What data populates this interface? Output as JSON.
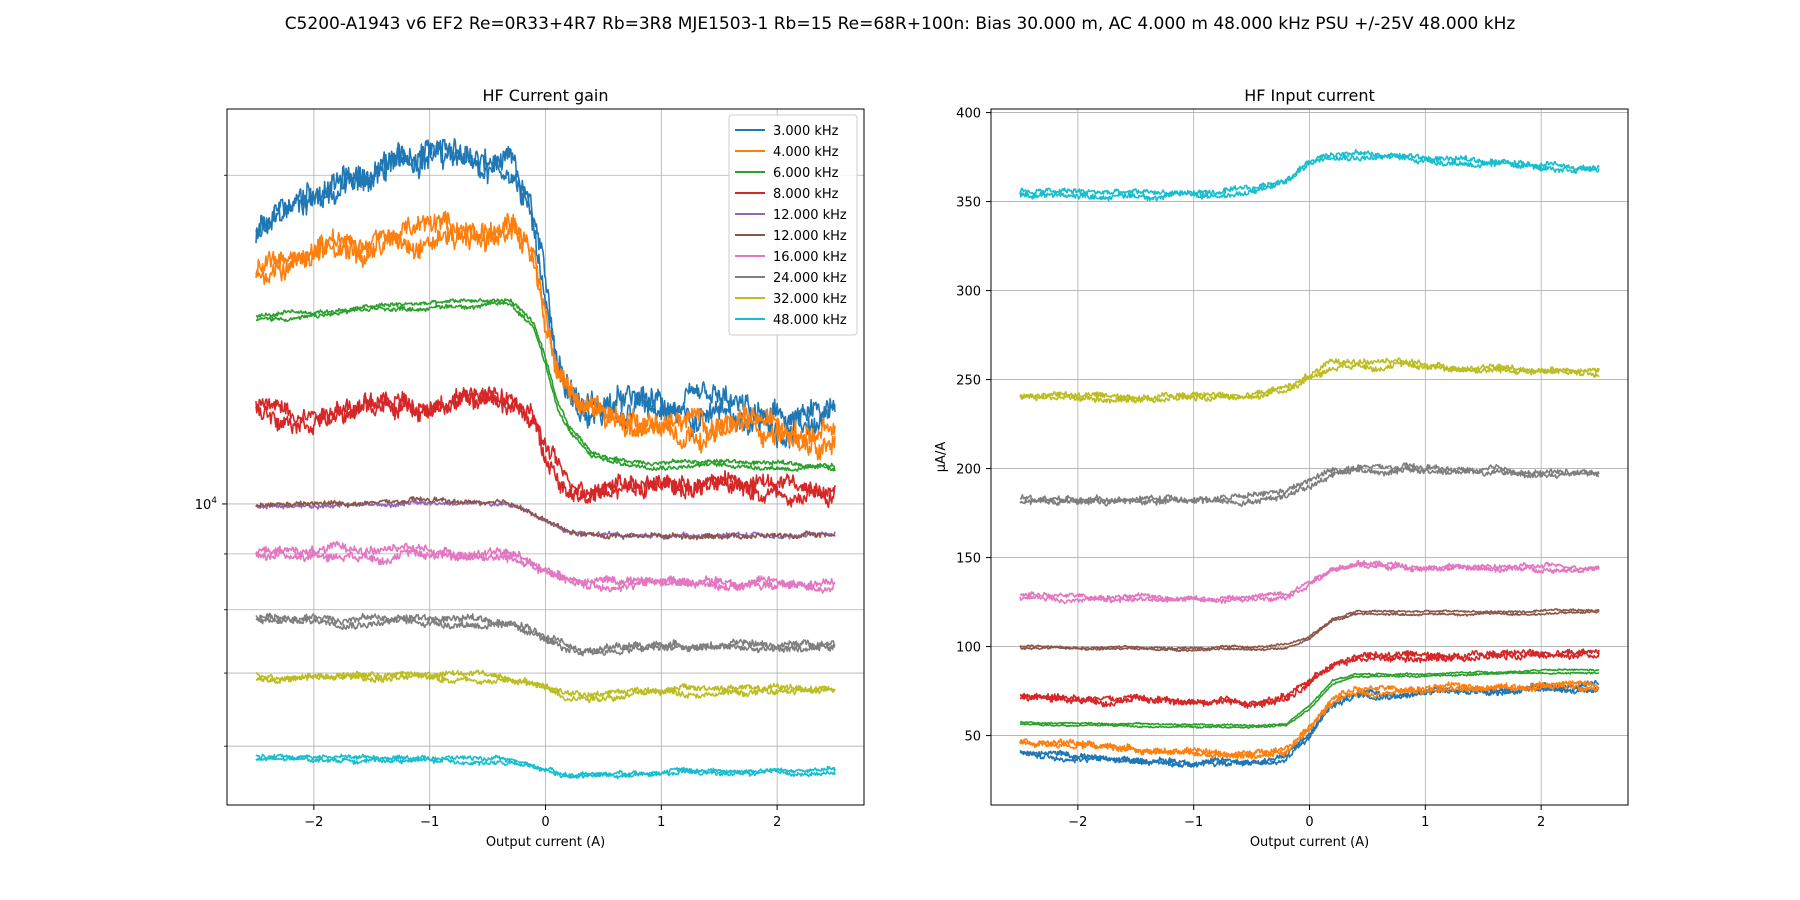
{
  "figure": {
    "suptitle": "C5200-A1943 v6 EF2 Re=0R33+4R7 Rb=3R8 MJE1503-1 Rb=15 Re=68R+100n: Bias 30.000 m, AC 4.000 m 48.000 kHz PSU +/-25V 48.000 kHz"
  },
  "chart_data": [
    {
      "type": "line",
      "title": "HF Current gain",
      "xlabel": "Output current (A)",
      "ylabel": "",
      "yscale": "log",
      "xlim": [
        -2.75,
        2.75
      ],
      "ylim": [
        5300,
        23000
      ],
      "xticks": [
        -2,
        -1,
        0,
        1,
        2
      ],
      "xtick_labels": [
        "−2",
        "−1",
        "0",
        "1",
        "2"
      ],
      "yticks_major": [
        10000
      ],
      "ytick_labels_major": [
        "10^4"
      ],
      "yticks_minor": [
        6000,
        7000,
        8000,
        9000,
        20000
      ],
      "grid": true,
      "legend": {
        "position": "upper right",
        "entries": [
          "3.000 kHz",
          "4.000 kHz",
          "6.000 kHz",
          "8.000 kHz",
          "12.000 kHz",
          "12.000 kHz",
          "16.000 kHz",
          "24.000 kHz",
          "32.000 kHz",
          "48.000 kHz"
        ]
      },
      "series": [
        {
          "name": "3.000 kHz",
          "color": "#1f77b4",
          "noise": 0.035,
          "x": [
            -2.5,
            -2.0,
            -1.5,
            -1.0,
            -0.5,
            -0.3,
            -0.1,
            0.0,
            0.1,
            0.3,
            0.6,
            1.0,
            1.5,
            2.0,
            2.5
          ],
          "y": [
            17500,
            19300,
            20000,
            21200,
            20500,
            20300,
            18000,
            15500,
            13500,
            12400,
            12300,
            12200,
            12100,
            11800,
            11900
          ]
        },
        {
          "name": "4.000 kHz",
          "color": "#ff7f0e",
          "noise": 0.03,
          "x": [
            -2.5,
            -2.0,
            -1.5,
            -1.0,
            -0.5,
            -0.25,
            -0.1,
            0.0,
            0.1,
            0.3,
            0.6,
            1.0,
            1.5,
            2.0,
            2.5
          ],
          "y": [
            16300,
            17200,
            17500,
            17800,
            17800,
            17900,
            16500,
            14800,
            13200,
            12200,
            12000,
            11900,
            11800,
            11700,
            11600
          ]
        },
        {
          "name": "6.000 kHz",
          "color": "#2ca02c",
          "noise": 0.006,
          "x": [
            -2.5,
            -2.0,
            -1.5,
            -1.0,
            -0.5,
            -0.3,
            -0.1,
            0.0,
            0.1,
            0.2,
            0.4,
            0.7,
            1.0,
            1.5,
            2.0,
            2.5
          ],
          "y": [
            14800,
            14900,
            15100,
            15200,
            15300,
            15300,
            14600,
            13500,
            12300,
            11700,
            11100,
            10900,
            10900,
            10900,
            10850,
            10800
          ]
        },
        {
          "name": "8.000 kHz",
          "color": "#d62728",
          "noise": 0.025,
          "x": [
            -2.5,
            -2.0,
            -1.5,
            -1.0,
            -0.5,
            -0.3,
            -0.1,
            0.0,
            0.1,
            0.2,
            0.4,
            0.7,
            1.0,
            1.5,
            2.0,
            2.5
          ],
          "y": [
            12200,
            12200,
            12300,
            12400,
            12500,
            12400,
            11800,
            11200,
            10700,
            10400,
            10400,
            10400,
            10400,
            10400,
            10350,
            10300
          ]
        },
        {
          "name": "12.000 kHz",
          "color": "#9467bd",
          "noise": 0.006,
          "x": [
            -2.5,
            -1.5,
            -0.5,
            -0.2,
            0.0,
            0.2,
            0.4,
            1.0,
            2.0,
            2.5
          ],
          "y": [
            10000,
            10050,
            10050,
            9950,
            9700,
            9450,
            9400,
            9400,
            9400,
            9400
          ]
        },
        {
          "name": "12.000 kHz",
          "color": "#8c564b",
          "noise": 0.007,
          "x": [
            -2.5,
            -1.5,
            -1.0,
            -0.5,
            -0.2,
            0.0,
            0.2,
            0.4,
            1.0,
            2.0,
            2.5
          ],
          "y": [
            10000,
            10050,
            10100,
            10050,
            9950,
            9700,
            9450,
            9400,
            9400,
            9400,
            9400
          ]
        },
        {
          "name": "16.000 kHz",
          "color": "#e377c2",
          "noise": 0.012,
          "x": [
            -2.5,
            -1.5,
            -0.5,
            -0.2,
            0.0,
            0.2,
            0.4,
            1.0,
            2.0,
            2.5
          ],
          "y": [
            9000,
            9050,
            9000,
            8900,
            8700,
            8500,
            8450,
            8500,
            8450,
            8450
          ]
        },
        {
          "name": "24.000 kHz",
          "color": "#7f7f7f",
          "noise": 0.01,
          "x": [
            -2.5,
            -1.5,
            -0.5,
            -0.2,
            0.0,
            0.2,
            0.4,
            1.0,
            2.0,
            2.5
          ],
          "y": [
            7850,
            7850,
            7800,
            7700,
            7550,
            7400,
            7350,
            7400,
            7400,
            7400
          ]
        },
        {
          "name": "32.000 kHz",
          "color": "#bcbd22",
          "noise": 0.009,
          "x": [
            -2.5,
            -1.5,
            -0.5,
            -0.2,
            0.0,
            0.2,
            0.4,
            1.0,
            2.0,
            2.5
          ],
          "y": [
            6950,
            6950,
            6950,
            6900,
            6800,
            6700,
            6700,
            6750,
            6750,
            6750
          ]
        },
        {
          "name": "48.000 kHz",
          "color": "#17becf",
          "noise": 0.006,
          "x": [
            -2.5,
            -1.5,
            -0.5,
            -0.2,
            0.0,
            0.2,
            0.4,
            1.0,
            2.0,
            2.5
          ],
          "y": [
            5850,
            5850,
            5830,
            5780,
            5700,
            5630,
            5650,
            5680,
            5680,
            5680
          ]
        }
      ]
    },
    {
      "type": "line",
      "title": "HF Input current",
      "xlabel": "Output current (A)",
      "ylabel": "µA/A",
      "xlim": [
        -2.75,
        2.75
      ],
      "ylim": [
        11,
        402
      ],
      "xticks": [
        -2,
        -1,
        0,
        1,
        2
      ],
      "xtick_labels": [
        "−2",
        "−1",
        "0",
        "1",
        "2"
      ],
      "yticks": [
        50,
        100,
        150,
        200,
        250,
        300,
        350,
        400
      ],
      "ytick_labels": [
        "50",
        "100",
        "150",
        "200",
        "250",
        "300",
        "350",
        "400"
      ],
      "grid": true,
      "series": [
        {
          "color": "#1f77b4",
          "noise": 2.2,
          "x": [
            -2.5,
            -2.0,
            -1.5,
            -1.0,
            -0.5,
            -0.2,
            0.0,
            0.2,
            0.4,
            1.0,
            1.5,
            2.0,
            2.5
          ],
          "y": [
            40,
            38,
            36,
            35,
            35,
            38,
            50,
            68,
            73,
            74,
            76,
            76,
            77
          ]
        },
        {
          "color": "#ff7f0e",
          "noise": 2.2,
          "x": [
            -2.5,
            -2.0,
            -1.5,
            -1.0,
            -0.5,
            -0.2,
            0.0,
            0.2,
            0.4,
            1.0,
            1.5,
            2.0,
            2.5
          ],
          "y": [
            47,
            45,
            42,
            40,
            39,
            41,
            55,
            70,
            75,
            76,
            77,
            78,
            79
          ]
        },
        {
          "color": "#2ca02c",
          "noise": 0.6,
          "x": [
            -2.5,
            -1.5,
            -0.5,
            -0.2,
            0.0,
            0.2,
            0.4,
            1.0,
            1.5,
            2.0,
            2.5
          ],
          "y": [
            57,
            56,
            55,
            56,
            66,
            80,
            84,
            84,
            85,
            86,
            86
          ]
        },
        {
          "color": "#d62728",
          "noise": 2.5,
          "x": [
            -2.5,
            -1.5,
            -0.5,
            -0.2,
            0.0,
            0.2,
            0.4,
            1.0,
            1.5,
            2.0,
            2.5
          ],
          "y": [
            72,
            70,
            68,
            70,
            80,
            91,
            94,
            95,
            95,
            96,
            96
          ]
        },
        {
          "color": "#8c564b",
          "noise": 0.8,
          "x": [
            -2.5,
            -1.5,
            -0.5,
            -0.2,
            0.0,
            0.2,
            0.4,
            1.0,
            1.5,
            2.0,
            2.5
          ],
          "y": [
            100,
            99,
            99,
            100,
            105,
            115,
            119,
            119,
            119,
            119,
            120
          ]
        },
        {
          "color": "#e377c2",
          "noise": 1.8,
          "x": [
            -2.5,
            -1.5,
            -0.5,
            -0.2,
            0.0,
            0.2,
            0.4,
            1.0,
            1.5,
            2.0,
            2.5
          ],
          "y": [
            128,
            127,
            127,
            130,
            137,
            144,
            146,
            145,
            144,
            144,
            145
          ]
        },
        {
          "color": "#7f7f7f",
          "noise": 2.2,
          "x": [
            -2.5,
            -1.5,
            -0.5,
            -0.2,
            0.0,
            0.2,
            0.4,
            1.0,
            1.5,
            2.0,
            2.5
          ],
          "y": [
            183,
            182,
            183,
            186,
            192,
            198,
            200,
            199,
            198,
            197,
            197
          ]
        },
        {
          "color": "#bcbd22",
          "noise": 2.2,
          "x": [
            -2.5,
            -1.5,
            -0.5,
            -0.2,
            0.0,
            0.2,
            0.4,
            1.0,
            1.5,
            2.0,
            2.5
          ],
          "y": [
            241,
            240,
            241,
            245,
            252,
            258,
            260,
            258,
            256,
            255,
            254
          ]
        },
        {
          "color": "#17becf",
          "noise": 2.2,
          "x": [
            -2.5,
            -1.5,
            -0.5,
            -0.2,
            0.0,
            0.2,
            0.4,
            1.0,
            1.5,
            2.0,
            2.5
          ],
          "y": [
            355,
            354,
            355,
            362,
            372,
            378,
            377,
            374,
            372,
            370,
            369
          ]
        }
      ]
    }
  ]
}
